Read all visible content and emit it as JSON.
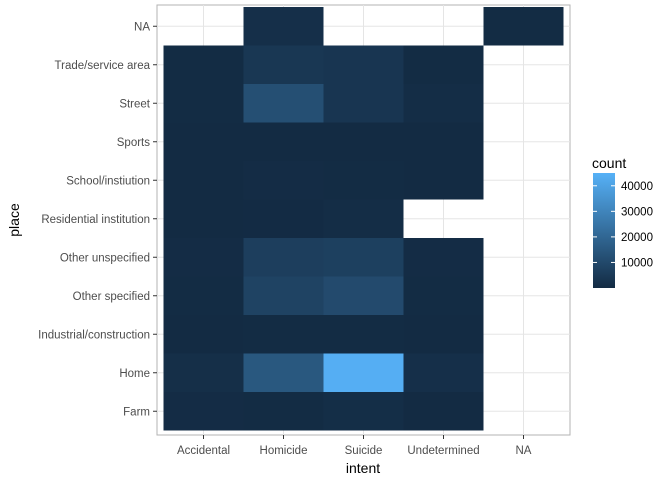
{
  "chart_data": {
    "type": "heatmap",
    "xlabel": "intent",
    "ylabel": "place",
    "x_categories": [
      "Accidental",
      "Homicide",
      "Suicide",
      "Undetermined",
      "NA"
    ],
    "y_categories": [
      "Farm",
      "Home",
      "Industrial/construction",
      "Other specified",
      "Other unspecified",
      "Residential institution",
      "School/instiution",
      "Sports",
      "Street",
      "Trade/service area",
      "NA"
    ],
    "grid": true,
    "legend": {
      "title": "count",
      "placement": "right",
      "min": 0,
      "max": 45000,
      "ticks": [
        10000,
        20000,
        30000,
        40000
      ],
      "tick_labels": [
        "10000",
        "20000",
        "30000",
        "40000"
      ],
      "color_low": "#132b43",
      "color_high": "#56b1f7"
    },
    "cells": [
      {
        "x": "Accidental",
        "y": "Farm",
        "value": 400
      },
      {
        "x": "Accidental",
        "y": "Home",
        "value": 1200
      },
      {
        "x": "Accidental",
        "y": "Industrial/construction",
        "value": 100
      },
      {
        "x": "Accidental",
        "y": "Other specified",
        "value": 300
      },
      {
        "x": "Accidental",
        "y": "Other unspecified",
        "value": 500
      },
      {
        "x": "Accidental",
        "y": "Residential institution",
        "value": 50
      },
      {
        "x": "Accidental",
        "y": "School/instiution",
        "value": 30
      },
      {
        "x": "Accidental",
        "y": "Sports",
        "value": 80
      },
      {
        "x": "Accidental",
        "y": "Street",
        "value": 300
      },
      {
        "x": "Accidental",
        "y": "Trade/service area",
        "value": 200
      },
      {
        "x": "Homicide",
        "y": "Farm",
        "value": 300
      },
      {
        "x": "Homicide",
        "y": "Home",
        "value": 15000
      },
      {
        "x": "Homicide",
        "y": "Industrial/construction",
        "value": 200
      },
      {
        "x": "Homicide",
        "y": "Other specified",
        "value": 8000
      },
      {
        "x": "Homicide",
        "y": "Other unspecified",
        "value": 6500
      },
      {
        "x": "Homicide",
        "y": "Residential institution",
        "value": 150
      },
      {
        "x": "Homicide",
        "y": "School/instiution",
        "value": 400
      },
      {
        "x": "Homicide",
        "y": "Sports",
        "value": 100
      },
      {
        "x": "Homicide",
        "y": "Street",
        "value": 12000
      },
      {
        "x": "Homicide",
        "y": "Trade/service area",
        "value": 4000
      },
      {
        "x": "Homicide",
        "y": "NA",
        "value": 1500
      },
      {
        "x": "Suicide",
        "y": "Farm",
        "value": 1000
      },
      {
        "x": "Suicide",
        "y": "Home",
        "value": 44000
      },
      {
        "x": "Suicide",
        "y": "Industrial/construction",
        "value": 300
      },
      {
        "x": "Suicide",
        "y": "Other specified",
        "value": 10500
      },
      {
        "x": "Suicide",
        "y": "Other unspecified",
        "value": 7000
      },
      {
        "x": "Suicide",
        "y": "Residential institution",
        "value": 800
      },
      {
        "x": "Suicide",
        "y": "School/instiution",
        "value": 200
      },
      {
        "x": "Suicide",
        "y": "Sports",
        "value": 50
      },
      {
        "x": "Suicide",
        "y": "Street",
        "value": 3500
      },
      {
        "x": "Suicide",
        "y": "Trade/service area",
        "value": 3500
      },
      {
        "x": "Undetermined",
        "y": "Farm",
        "value": 50
      },
      {
        "x": "Undetermined",
        "y": "Home",
        "value": 1500
      },
      {
        "x": "Undetermined",
        "y": "Industrial/construction",
        "value": 30
      },
      {
        "x": "Undetermined",
        "y": "Other specified",
        "value": 200
      },
      {
        "x": "Undetermined",
        "y": "Other unspecified",
        "value": 400
      },
      {
        "x": "Undetermined",
        "y": "School/instiution",
        "value": 20
      },
      {
        "x": "Undetermined",
        "y": "Sports",
        "value": 10
      },
      {
        "x": "Undetermined",
        "y": "Street",
        "value": 700
      },
      {
        "x": "Undetermined",
        "y": "Trade/service area",
        "value": 300
      },
      {
        "x": "NA",
        "y": "NA",
        "value": 300
      }
    ]
  }
}
